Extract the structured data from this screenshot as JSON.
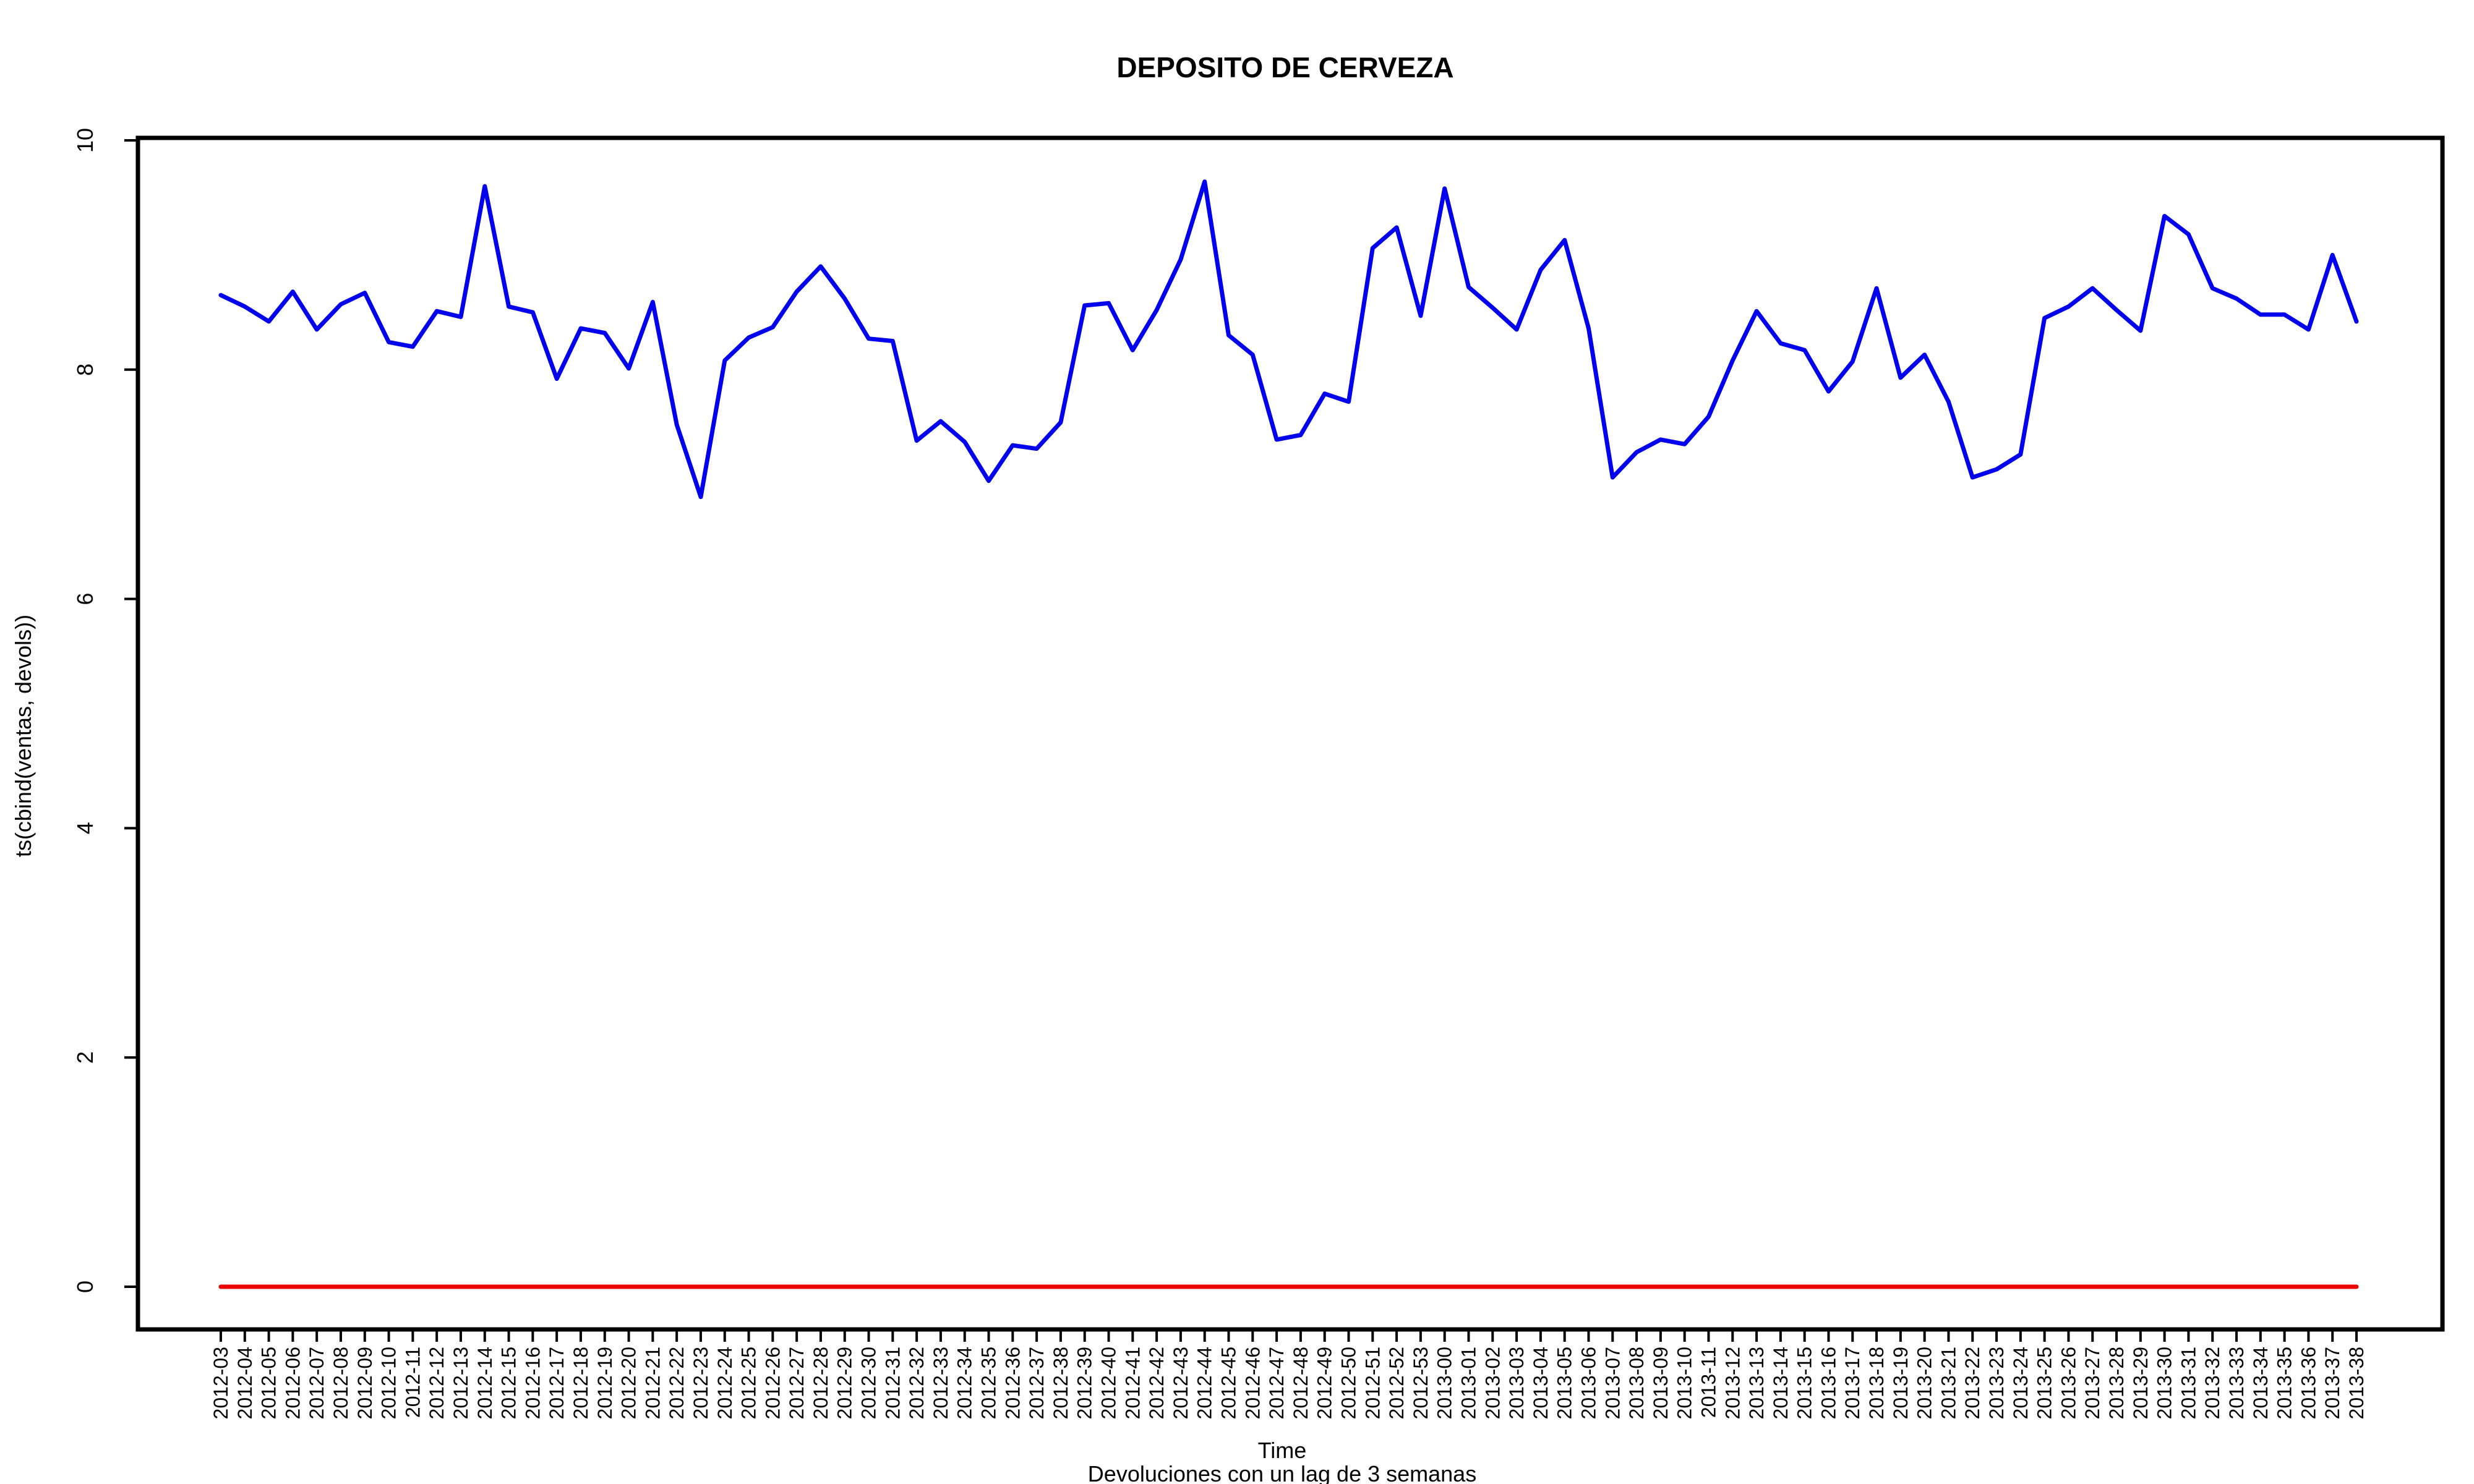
{
  "chart_data": {
    "type": "line",
    "title": "DEPOSITO DE CERVEZA",
    "xlabel": "Time",
    "ylabel": "ts(cbind(ventas, devols))",
    "caption": "Devoluciones con un lag de 3 semanas",
    "ylim": [
      0,
      10
    ],
    "yticks": [
      0,
      2,
      4,
      6,
      8,
      10
    ],
    "grid": false,
    "legend": "none",
    "x": [
      "2012-03",
      "2012-04",
      "2012-05",
      "2012-06",
      "2012-07",
      "2012-08",
      "2012-09",
      "2012-10",
      "2012-11",
      "2012-12",
      "2012-13",
      "2012-14",
      "2012-15",
      "2012-16",
      "2012-17",
      "2012-18",
      "2012-19",
      "2012-20",
      "2012-21",
      "2012-22",
      "2012-23",
      "2012-24",
      "2012-25",
      "2012-26",
      "2012-27",
      "2012-28",
      "2012-29",
      "2012-30",
      "2012-31",
      "2012-32",
      "2012-33",
      "2012-34",
      "2012-35",
      "2012-36",
      "2012-37",
      "2012-38",
      "2012-39",
      "2012-40",
      "2012-41",
      "2012-42",
      "2012-43",
      "2012-44",
      "2012-45",
      "2012-46",
      "2012-47",
      "2012-48",
      "2012-49",
      "2012-50",
      "2012-51",
      "2012-52",
      "2012-53",
      "2013-00",
      "2013-01",
      "2013-02",
      "2013-03",
      "2013-04",
      "2013-05",
      "2013-06",
      "2013-07",
      "2013-08",
      "2013-09",
      "2013-10",
      "2013-11",
      "2013-12",
      "2013-13",
      "2013-14",
      "2013-15",
      "2013-16",
      "2013-17",
      "2013-18",
      "2013-19",
      "2013-20",
      "2013-21",
      "2013-22",
      "2013-23",
      "2013-24",
      "2013-25",
      "2013-26",
      "2013-27",
      "2013-28",
      "2013-29",
      "2013-30",
      "2013-31",
      "2013-32",
      "2013-33",
      "2013-34",
      "2013-35",
      "2013-36",
      "2013-37",
      "2013-38"
    ],
    "series": [
      {
        "color": "#0000EE",
        "values": [
          8.65,
          8.55,
          8.42,
          8.68,
          8.35,
          8.57,
          8.67,
          8.24,
          8.2,
          8.51,
          8.46,
          9.6,
          8.55,
          8.5,
          7.92,
          8.36,
          8.32,
          8.01,
          8.59,
          7.52,
          6.89,
          8.08,
          8.28,
          8.37,
          8.68,
          8.9,
          8.62,
          8.27,
          8.25,
          7.38,
          7.55,
          7.37,
          7.03,
          7.34,
          7.31,
          7.54,
          8.56,
          8.58,
          8.17,
          8.52,
          8.96,
          9.64,
          8.3,
          8.13,
          7.39,
          7.43,
          7.79,
          7.72,
          9.06,
          9.24,
          8.47,
          9.58,
          8.72,
          8.54,
          8.35,
          8.87,
          9.13,
          8.36,
          7.06,
          7.28,
          7.39,
          7.35,
          7.59,
          8.08,
          8.51,
          8.23,
          8.17,
          7.81,
          8.07,
          8.71,
          7.93,
          8.13,
          7.72,
          7.06,
          7.13,
          7.26,
          8.45,
          8.55,
          8.71,
          8.52,
          8.34,
          9.34,
          9.18,
          8.71,
          8.62,
          8.48,
          8.48,
          8.35,
          9.0,
          8.42
        ]
      },
      {
        "color": "#EE0000",
        "values": [
          0.0,
          0.0,
          0.0,
          0.0,
          0.0,
          0.0,
          0.0,
          0.0,
          0.0,
          0.0,
          0.0,
          0.0,
          0.0,
          0.0,
          0.0,
          0.0,
          0.0,
          0.0,
          0.0,
          0.0,
          0.0,
          0.0,
          0.0,
          0.0,
          0.0,
          0.0,
          0.0,
          0.0,
          0.0,
          0.0,
          0.0,
          0.0,
          0.0,
          0.0,
          0.0,
          0.0,
          0.0,
          0.0,
          0.0,
          0.0,
          0.0,
          0.0,
          0.0,
          0.0,
          0.0,
          0.0,
          0.0,
          0.0,
          0.0,
          0.0,
          0.0,
          0.0,
          0.0,
          0.0,
          0.0,
          0.0,
          0.0,
          0.0,
          0.0,
          0.0,
          0.0,
          0.0,
          0.0,
          0.0,
          0.0,
          0.0,
          0.0,
          0.0,
          0.0,
          0.0,
          0.0,
          0.0,
          0.0,
          0.0,
          0.0,
          0.0,
          0.0,
          0.0,
          0.0,
          0.0,
          0.0,
          0.0,
          0.0,
          0.0,
          0.0,
          0.0,
          0.0,
          0.0,
          0.0,
          0.0
        ]
      }
    ]
  }
}
